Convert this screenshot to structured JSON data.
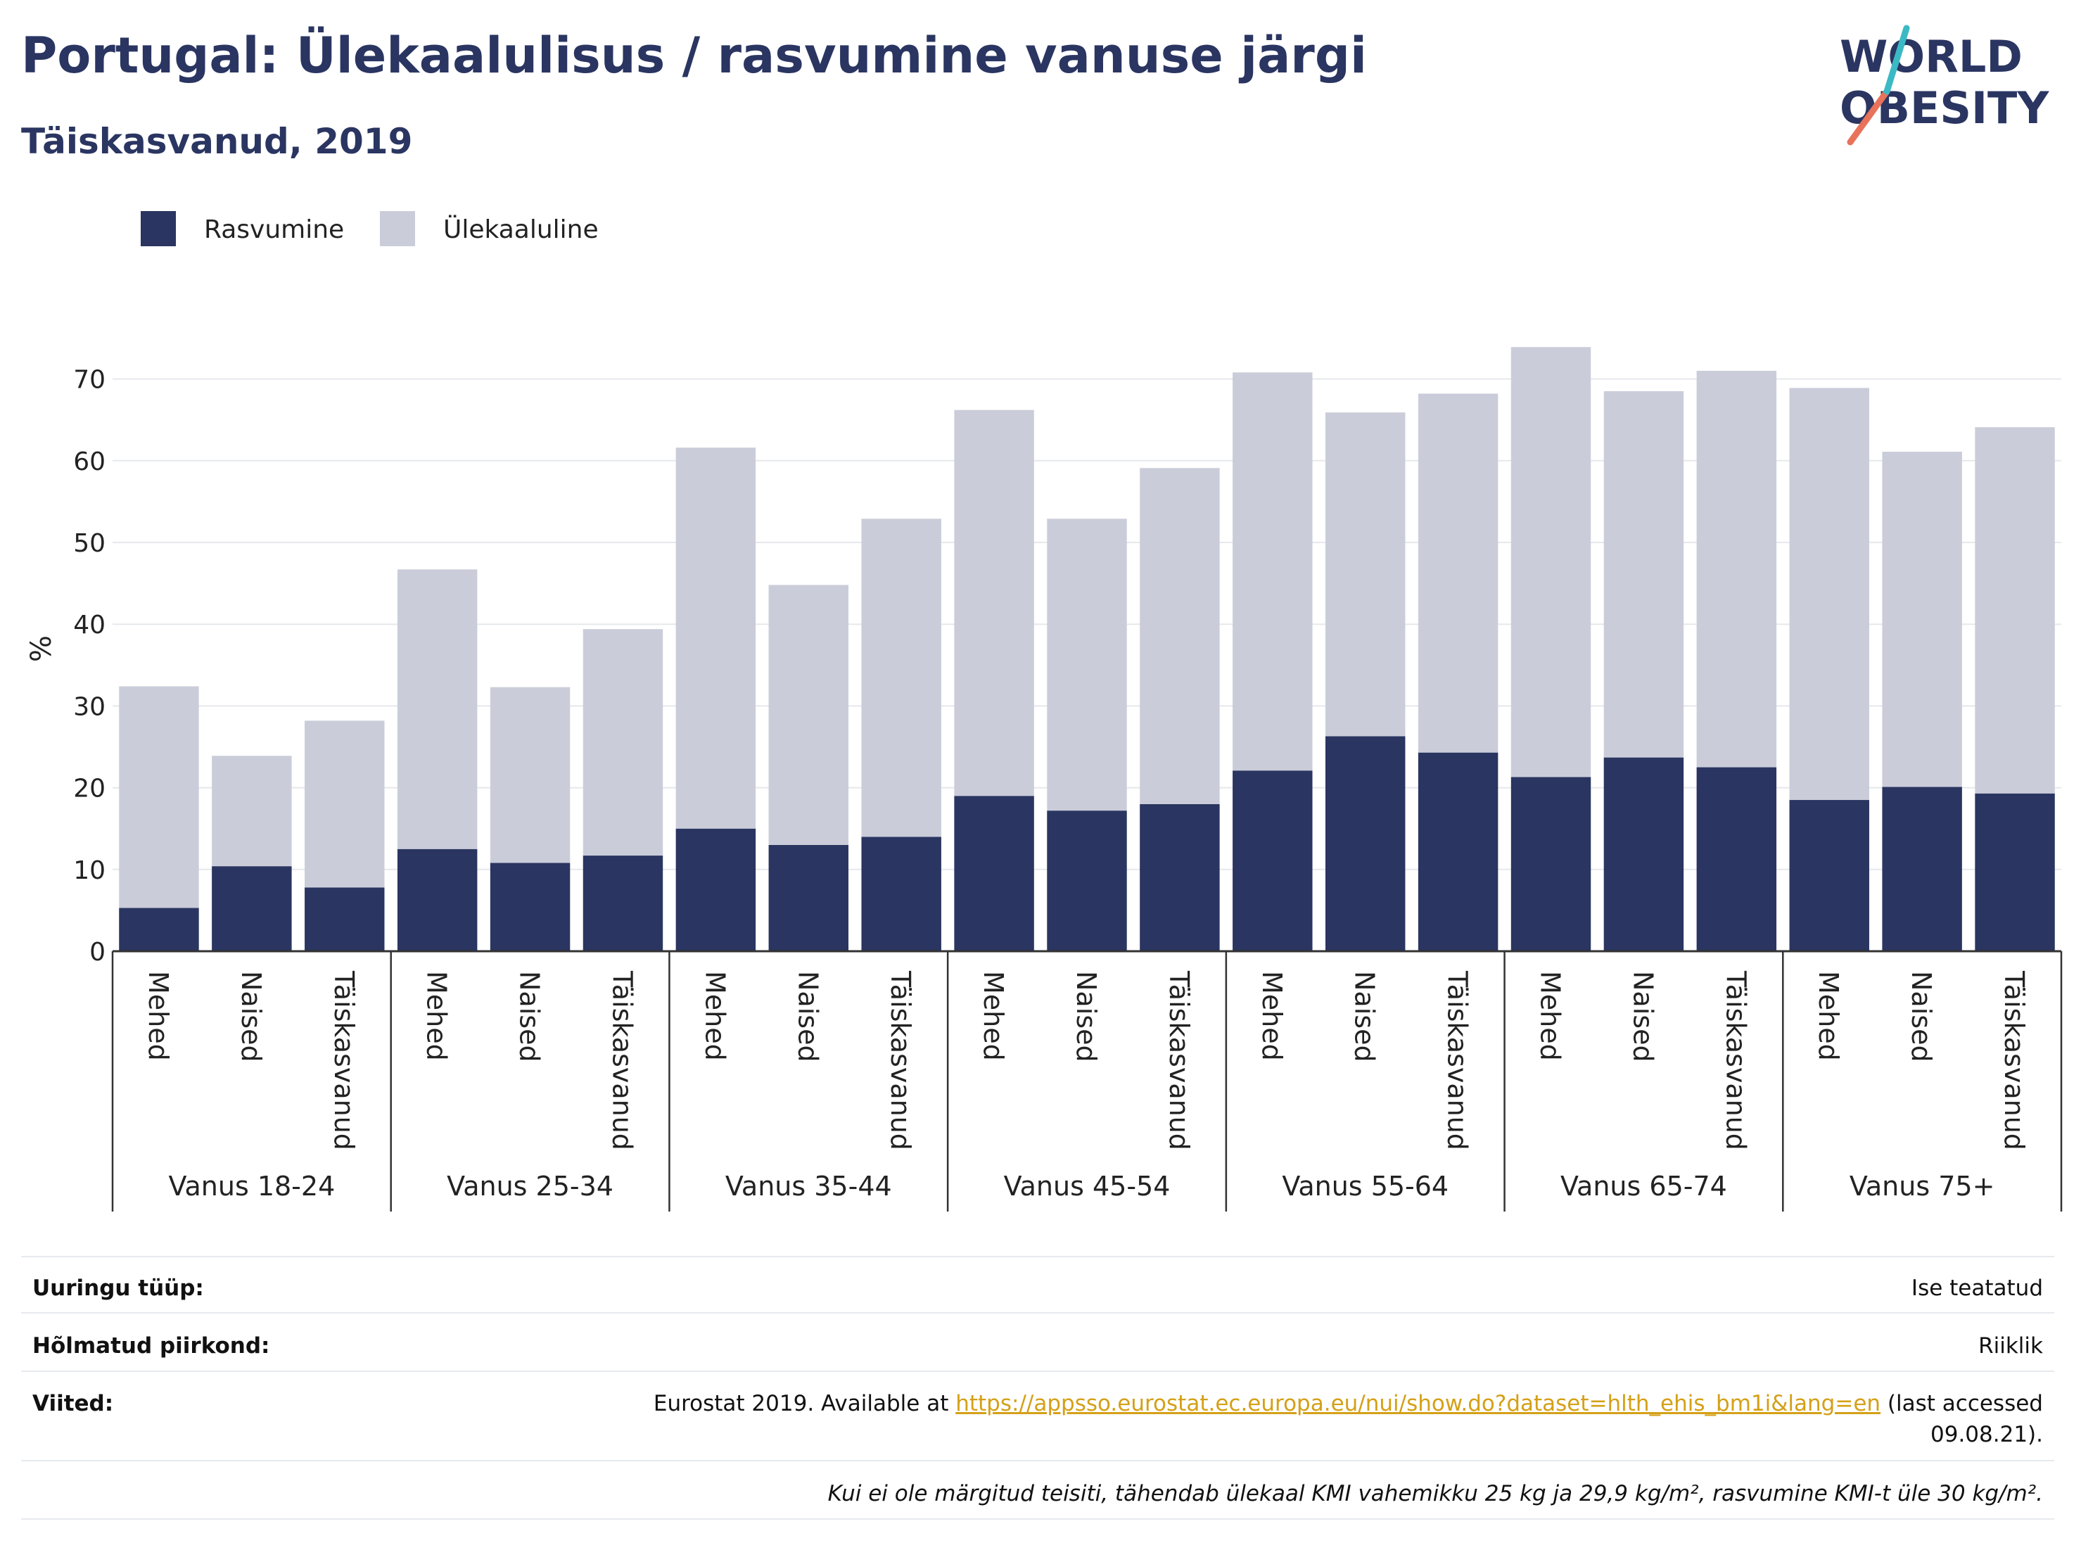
{
  "header": {
    "title": "Portugal: Ülekaalulisus / rasvumine vanuse järgi",
    "subtitle": "Täiskasvanud, 2019"
  },
  "logo": {
    "line1": "WORLD",
    "line2": "OBESITY"
  },
  "chart_data": {
    "type": "bar",
    "stacked": true,
    "ylabel": "%",
    "ylim": [
      0,
      75
    ],
    "yticks": [
      0,
      10,
      20,
      30,
      40,
      50,
      60,
      70
    ],
    "grid": true,
    "legend_position": "top-left",
    "groups": [
      "Vanus 18-24",
      "Vanus 25-34",
      "Vanus 35-44",
      "Vanus 45-54",
      "Vanus 55-64",
      "Vanus 65-74",
      "Vanus 75+"
    ],
    "subcategories": [
      "Mehed",
      "Naised",
      "Täiskasvanud"
    ],
    "series": [
      {
        "name": "Rasvumine",
        "color": "#2a3561",
        "values": [
          5.3,
          10.4,
          7.8,
          12.5,
          10.8,
          11.7,
          15.0,
          13.0,
          14.0,
          19.0,
          17.2,
          18.0,
          22.1,
          26.3,
          24.3,
          21.3,
          23.7,
          22.5,
          18.5,
          20.1,
          19.3
        ]
      },
      {
        "name": "Ülekaaluline",
        "color": "#cacdd9",
        "values": [
          27.1,
          13.5,
          20.4,
          34.2,
          21.5,
          27.7,
          46.6,
          31.8,
          38.9,
          47.2,
          35.7,
          41.1,
          48.7,
          39.6,
          43.9,
          52.6,
          44.8,
          48.5,
          50.4,
          41.0,
          44.8
        ]
      }
    ]
  },
  "info": {
    "survey_label": "Uuringu tüüp:",
    "survey_value": "Ise teatatud",
    "region_label": "Hõlmatud piirkond:",
    "region_value": "Riiklik",
    "refs_label": "Viited:",
    "refs_prefix": "Eurostat 2019. Available at ",
    "refs_link": "https://appsso.eurostat.ec.europa.eu/nui/show.do?dataset=hlth_ehis_bm1i&lang=en",
    "refs_suffix": " (last accessed",
    "refs_date": "09.08.21).",
    "note": "Kui ei ole märgitud teisiti, tähendab ülekaal KMI vahemikku 25 kg ja 29,9 kg/m², rasvumine KMI-t üle 30 kg/m²."
  }
}
